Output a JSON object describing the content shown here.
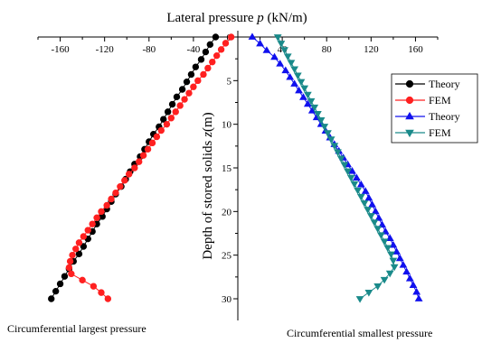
{
  "chart_data": {
    "type": "line",
    "title_prefix": "Lateral pressure ",
    "title_var": "p",
    "title_suffix": " (kN/m)",
    "ylabel_prefix": "Depth of stored solids ",
    "ylabel_var": "z",
    "ylabel_suffix": "(m)",
    "xlim": [
      -180,
      180
    ],
    "ylim": [
      0,
      32
    ],
    "y_inverted": true,
    "x_ticks": [
      -160,
      -120,
      -80,
      -40,
      0,
      40,
      80,
      120,
      160
    ],
    "x_tick_labels": [
      "-160",
      "-120",
      "-80",
      "-40",
      "0",
      "40",
      "80",
      "120",
      "160"
    ],
    "y_ticks": [
      0,
      5,
      10,
      15,
      20,
      25,
      30
    ],
    "y_tick_labels": [
      "0",
      "5",
      "10",
      "15",
      "20",
      "25",
      "30"
    ],
    "grid": false,
    "legend_position": "right",
    "annotations": [
      "Circumferential largest pressure",
      "Circumferential smallest pressure"
    ],
    "series": [
      {
        "name": "Theory",
        "color": "#000000",
        "marker": "circle",
        "x": [
          -20,
          -25,
          -29,
          -33,
          -38,
          -42,
          -46,
          -50,
          -55,
          -59,
          -63,
          -67,
          -71,
          -76,
          -80,
          -84,
          -88,
          -93,
          -97,
          -101,
          -105,
          -110,
          -114,
          -118,
          -122,
          -127,
          -131,
          -135,
          -139,
          -143,
          -148,
          -152,
          -156,
          -160,
          -164,
          -168
        ],
        "y": [
          0,
          0.86,
          1.71,
          2.57,
          3.43,
          4.29,
          5.14,
          6,
          6.86,
          7.71,
          8.57,
          9.43,
          10.29,
          11.14,
          12,
          12.86,
          13.71,
          14.57,
          15.43,
          16.29,
          17.14,
          18,
          18.86,
          19.71,
          20.57,
          21.43,
          22.29,
          23.14,
          24,
          24.86,
          25.71,
          26.57,
          27.43,
          28.29,
          29.14,
          30
        ]
      },
      {
        "name": "FEM",
        "color": "#ff2020",
        "marker": "circle",
        "x": [
          -6,
          -11,
          -15,
          -19,
          -23,
          -27,
          -31,
          -36,
          -40,
          -44,
          -48,
          -52,
          -56,
          -60,
          -64,
          -69,
          -73,
          -77,
          -81,
          -85,
          -89,
          -93,
          -98,
          -102,
          -106,
          -110,
          -114,
          -118,
          -123,
          -127,
          -131,
          -135,
          -139,
          -143,
          -146,
          -149,
          -151,
          -152,
          -150,
          -140,
          -130,
          -123,
          -117
        ],
        "y": [
          0,
          0.71,
          1.43,
          2.14,
          2.86,
          3.57,
          4.29,
          5,
          5.71,
          6.43,
          7.14,
          7.86,
          8.57,
          9.29,
          10,
          10.71,
          11.43,
          12.14,
          12.86,
          13.57,
          14.29,
          15,
          15.71,
          16.43,
          17.14,
          17.86,
          18.57,
          19.29,
          20,
          20.71,
          21.43,
          22.14,
          22.86,
          23.57,
          24.29,
          25,
          25.71,
          26.43,
          27.14,
          27.86,
          28.57,
          29.29,
          30
        ]
      },
      {
        "name": "Theory",
        "color": "#1010ee",
        "marker": "triangle-up",
        "x": [
          13,
          20,
          26,
          33,
          38,
          43,
          47,
          51,
          55,
          59,
          63,
          67,
          71,
          75,
          79,
          83,
          87,
          91,
          95,
          99,
          103,
          107,
          111,
          115,
          118,
          121,
          124,
          127,
          130,
          133,
          137,
          140,
          143,
          146,
          149,
          152,
          155,
          158,
          161,
          163
        ],
        "y": [
          0,
          0.77,
          1.54,
          2.31,
          3.08,
          3.85,
          4.62,
          5.38,
          6.15,
          6.92,
          7.69,
          8.46,
          9.23,
          10,
          10.77,
          11.54,
          12.31,
          13.08,
          13.85,
          14.62,
          15.38,
          16.15,
          16.92,
          17.69,
          18.46,
          19.23,
          20,
          20.77,
          21.54,
          22.31,
          23.08,
          23.85,
          24.62,
          25.38,
          26.15,
          26.92,
          27.69,
          28.46,
          29.23,
          30
        ]
      },
      {
        "name": "FEM",
        "color": "#1a8a8a",
        "marker": "triangle-down",
        "x": [
          36,
          39,
          42,
          45,
          48,
          51,
          54,
          57,
          60,
          63,
          66,
          69,
          72,
          75,
          78,
          81,
          84,
          87,
          90,
          93,
          96,
          99,
          102,
          105,
          108,
          111,
          114,
          117,
          120,
          123,
          126,
          129,
          132,
          135,
          138,
          140,
          141,
          137,
          132,
          126,
          118,
          110
        ],
        "y": [
          0,
          0.73,
          1.46,
          2.2,
          2.93,
          3.66,
          4.39,
          5.12,
          5.85,
          6.59,
          7.32,
          8.05,
          8.78,
          9.51,
          10.24,
          10.98,
          11.71,
          12.44,
          13.17,
          13.9,
          14.63,
          15.37,
          16.1,
          16.83,
          17.56,
          18.29,
          19.02,
          19.76,
          20.49,
          21.22,
          21.95,
          22.68,
          23.41,
          24.15,
          24.88,
          25.61,
          26.34,
          27.07,
          27.8,
          28.54,
          29.27,
          30
        ]
      }
    ]
  }
}
